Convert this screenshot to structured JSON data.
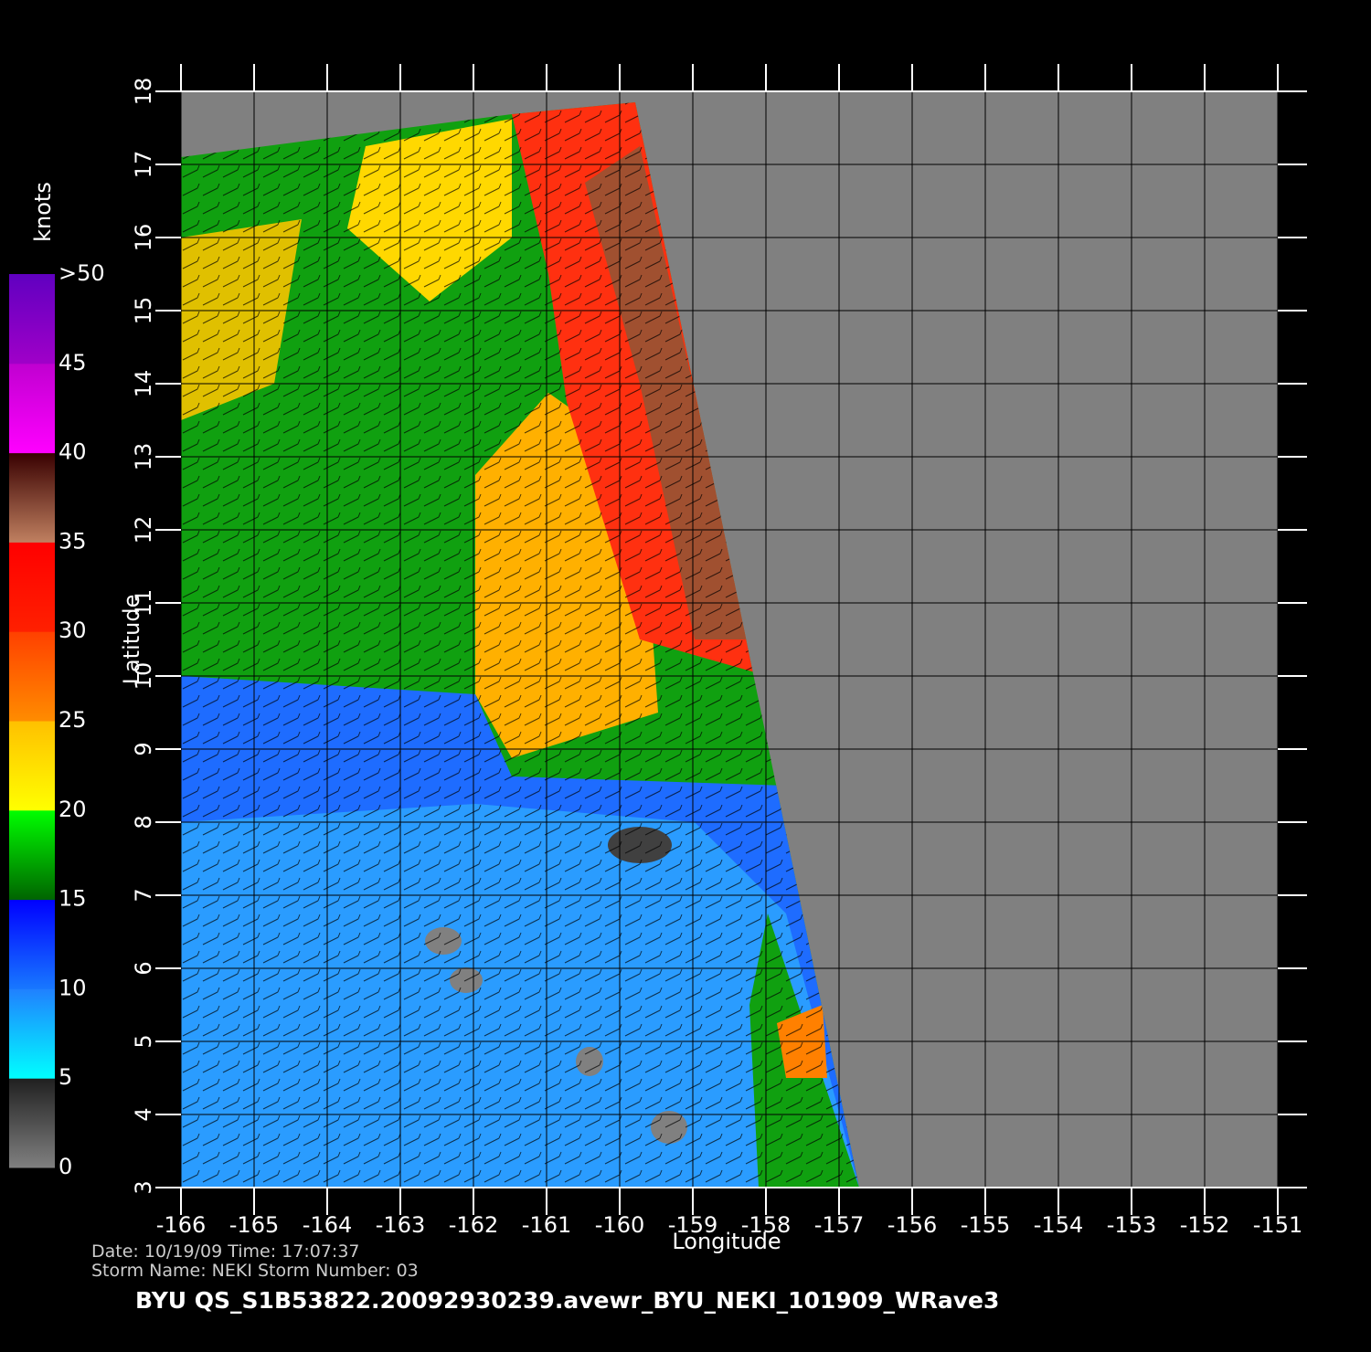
{
  "chart_data": {
    "type": "map",
    "xlabel": "Longitude",
    "ylabel": "Latitude",
    "xlim": [
      -166,
      -151
    ],
    "ylim": [
      3,
      18
    ],
    "xticks": [
      -166,
      -165,
      -164,
      -163,
      -162,
      -161,
      -160,
      -159,
      -158,
      -157,
      -156,
      -155,
      -154,
      -153,
      -152,
      -151
    ],
    "yticks": [
      3,
      4,
      5,
      6,
      7,
      8,
      9,
      10,
      11,
      12,
      13,
      14,
      15,
      16,
      17,
      18
    ],
    "grid": true,
    "colorbar": {
      "label": "knots",
      "ticks": [
        0,
        5,
        10,
        15,
        20,
        25,
        30,
        35,
        40,
        45,
        {
          "value": 50,
          "label": ">50"
        }
      ],
      "bands": [
        {
          "from": "#808080",
          "to": "#202020"
        },
        {
          "from": "#00ffff",
          "to": "#2080ff"
        },
        {
          "from": "#1878ff",
          "to": "#0000ff"
        },
        {
          "from": "#006400",
          "to": "#00ff00"
        },
        {
          "from": "#ffff00",
          "to": "#ffc000"
        },
        {
          "from": "#ff8c00",
          "to": "#ff4000"
        },
        {
          "from": "#ff2000",
          "to": "#ff0000"
        },
        {
          "from": "#c08060",
          "to": "#380000"
        },
        {
          "from": "#ff00ff",
          "to": "#c000d0"
        },
        {
          "from": "#a000c8",
          "to": "#6000c0"
        }
      ]
    },
    "date_line": "Date:  10/19/09   Time:  17:07:37",
    "storm_line": "Storm  Name:  NEKI    Storm  Number:  03",
    "title": "BYU  QS_S1B53822.20092930239.avewr_BYU_NEKI_101909_WRave3"
  }
}
